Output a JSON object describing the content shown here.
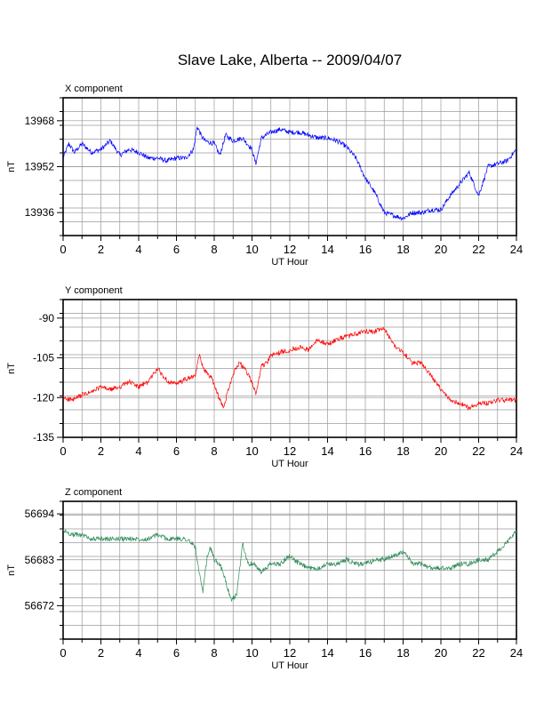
{
  "title": "Slave Lake, Alberta -- 2009/04/07",
  "chart_data": [
    {
      "type": "line",
      "panel_title": "X component",
      "xlabel": "UT Hour",
      "ylabel": "nT",
      "xlim": [
        0,
        24
      ],
      "ylim": [
        13928,
        13976
      ],
      "xticks": [
        0,
        2,
        4,
        6,
        8,
        10,
        12,
        14,
        16,
        18,
        20,
        22,
        24
      ],
      "yticks": [
        13936,
        13952,
        13968
      ],
      "grid": true,
      "series": [
        {
          "color": "#0000ff",
          "x": [
            0,
            0.3,
            0.6,
            1,
            1.5,
            2,
            2.5,
            3,
            3.5,
            4,
            4.5,
            5,
            5.5,
            6,
            6.5,
            6.9,
            7.1,
            7.3,
            7.5,
            8,
            8.3,
            8.6,
            9,
            9.5,
            10,
            10.2,
            10.5,
            11,
            11.5,
            12,
            12.5,
            13,
            13.5,
            14,
            14.5,
            15,
            15.5,
            16,
            16.5,
            17,
            17.5,
            18,
            18.5,
            19,
            19.5,
            20,
            20.5,
            21,
            21.5,
            21.8,
            22,
            22.5,
            23,
            23.5,
            24
          ],
          "y": [
            13955,
            13960,
            13957,
            13960,
            13957,
            13958,
            13961,
            13956,
            13958,
            13957,
            13955,
            13955,
            13954,
            13955,
            13955,
            13958,
            13966,
            13963,
            13961,
            13960,
            13956,
            13963,
            13961,
            13962,
            13958,
            13953,
            13962,
            13964,
            13965,
            13964,
            13964,
            13963,
            13962,
            13962,
            13961,
            13959,
            13955,
            13948,
            13943,
            13936,
            13935,
            13934,
            13936,
            13936,
            13937,
            13937,
            13942,
            13946,
            13950,
            13945,
            13942,
            13952,
            13953,
            13954,
            13958
          ]
        }
      ]
    },
    {
      "type": "line",
      "panel_title": "Y component",
      "xlabel": "UT Hour",
      "ylabel": "nT",
      "xlim": [
        0,
        24
      ],
      "ylim": [
        -135,
        -83
      ],
      "xticks": [
        0,
        2,
        4,
        6,
        8,
        10,
        12,
        14,
        16,
        18,
        20,
        22,
        24
      ],
      "yticks": [
        -135,
        -120,
        -105,
        -90
      ],
      "grid": true,
      "series": [
        {
          "color": "#ff0000",
          "x": [
            0,
            0.5,
            1,
            1.5,
            2,
            2.5,
            3,
            3.5,
            4,
            4.5,
            5,
            5.3,
            5.6,
            6,
            6.5,
            7,
            7.2,
            7.5,
            7.8,
            8,
            8.3,
            8.5,
            8.7,
            9,
            9.3,
            9.6,
            10,
            10.2,
            10.5,
            10.8,
            11,
            11.5,
            12,
            12.5,
            13,
            13.5,
            14,
            14.5,
            15,
            15.5,
            16,
            16.5,
            17,
            17.5,
            18,
            18.5,
            19,
            19.5,
            20,
            20.5,
            21,
            21.5,
            22,
            22.5,
            23,
            23.5,
            24
          ],
          "y": [
            -120,
            -121,
            -119,
            -118,
            -116,
            -117,
            -116,
            -114,
            -116,
            -114,
            -109,
            -112,
            -114,
            -115,
            -113,
            -112,
            -104,
            -110,
            -112,
            -115,
            -121,
            -124,
            -118,
            -111,
            -107,
            -109,
            -114,
            -119,
            -108,
            -107,
            -104,
            -103,
            -102,
            -101,
            -102,
            -98,
            -100,
            -98,
            -97,
            -96,
            -95,
            -95,
            -94,
            -100,
            -103,
            -107,
            -107,
            -112,
            -117,
            -121,
            -122,
            -124,
            -122,
            -122,
            -121,
            -121,
            -121
          ]
        }
      ]
    },
    {
      "type": "line",
      "panel_title": "Z component",
      "xlabel": "UT Hour",
      "ylabel": "nT",
      "xlim": [
        0,
        24
      ],
      "ylim": [
        56664,
        56697
      ],
      "xticks": [
        0,
        2,
        4,
        6,
        8,
        10,
        12,
        14,
        16,
        18,
        20,
        22,
        24
      ],
      "yticks": [
        56672,
        56683,
        56694
      ],
      "grid": true,
      "series": [
        {
          "color": "#2e8b57",
          "x": [
            0,
            0.5,
            1,
            1.5,
            2,
            2.5,
            3,
            3.5,
            4,
            4.5,
            5,
            5.5,
            6,
            6.5,
            6.8,
            7,
            7.2,
            7.4,
            7.6,
            7.8,
            8,
            8.3,
            8.6,
            8.9,
            9.2,
            9.5,
            9.8,
            10.1,
            10.5,
            11,
            11.5,
            12,
            12.5,
            13,
            13.5,
            14,
            14.5,
            15,
            15.5,
            16,
            16.5,
            17,
            17.5,
            18,
            18.5,
            19,
            19.5,
            20,
            20.5,
            21,
            21.5,
            22,
            22.5,
            23,
            23.5,
            24
          ],
          "y": [
            56690,
            56689,
            56689,
            56688,
            56688,
            56688,
            56688,
            56688,
            56688,
            56688,
            56689,
            56688,
            56688,
            56688,
            56687,
            56686,
            56680,
            56675,
            56683,
            56686,
            56683,
            56682,
            56678,
            56673,
            56675,
            56687,
            56682,
            56682,
            56680,
            56682,
            56682,
            56684,
            56682,
            56681,
            56681,
            56682,
            56682,
            56683,
            56682,
            56682,
            56683,
            56683,
            56684,
            56685,
            56682,
            56682,
            56681,
            56681,
            56681,
            56682,
            56682,
            56683,
            56683,
            56685,
            56687,
            56690
          ]
        }
      ]
    }
  ]
}
